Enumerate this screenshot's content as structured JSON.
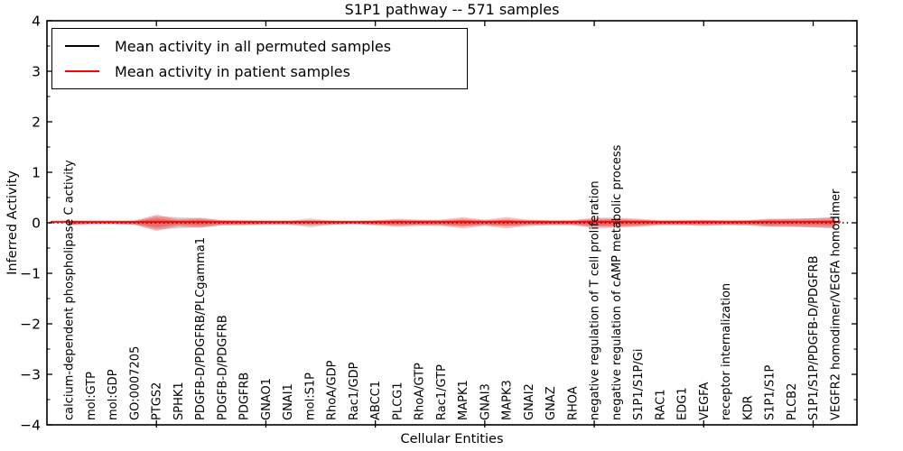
{
  "chart_data": {
    "type": "violin",
    "title": "S1P1 pathway -- 571 samples",
    "xlabel": "Cellular Entities",
    "ylabel": "Inferred Activity",
    "ylim": [
      -4,
      4
    ],
    "yticks": [
      -4,
      -3,
      -2,
      -1,
      0,
      1,
      2,
      3,
      4
    ],
    "grid": false,
    "legend_position": "upper left",
    "legend": [
      {
        "label": "Mean activity in all permuted samples",
        "color": "#000000"
      },
      {
        "label": "Mean activity in patient samples",
        "color": "#ff0000"
      }
    ],
    "categories": [
      "calcium-dependent phospholipase C activity",
      "mol:GTP",
      "mol:GDP",
      "GO:0007205",
      "PTGS2",
      "SPHK1",
      "PDGFB-D/PDGFRB/PLCgamma1",
      "PDGFB-D/PDGFRB",
      "PDGFRB",
      "GNAO1",
      "GNAI1",
      "mol:S1P",
      "RhoA/GDP",
      "Rac1/GDP",
      "ABCC1",
      "PLCG1",
      "RhoA/GTP",
      "Rac1/GTP",
      "MAPK1",
      "GNAI3",
      "MAPK3",
      "GNAI2",
      "GNAZ",
      "RHOA",
      "negative regulation of T cell proliferation",
      "negative regulation of cAMP metabolic process",
      "S1P1/S1P/Gi",
      "RAC1",
      "EDG1",
      "VEGFA",
      "receptor internalization",
      "KDR",
      "S1P1/S1P",
      "PLCB2",
      "S1P1/S1P/PDGFB-D/PDGFRB",
      "VEGFR2 homodimer/VEGFA homodimer"
    ],
    "series": [
      {
        "name": "Mean activity in all permuted samples",
        "color": "#000000",
        "style": "dotted",
        "values": [
          0,
          0,
          0,
          0,
          0,
          0,
          0,
          0,
          0,
          0,
          0,
          0,
          0,
          0,
          0,
          0,
          0,
          0,
          0,
          0,
          0,
          0,
          0,
          0,
          0,
          0,
          0,
          0,
          0,
          0,
          0,
          0,
          0,
          0,
          0,
          0
        ]
      },
      {
        "name": "Mean activity in patient samples",
        "color": "#ff0000",
        "style": "solid",
        "values": [
          0,
          0,
          0,
          0,
          0,
          0,
          0,
          0,
          0,
          0,
          0,
          0,
          0,
          0,
          0,
          0,
          0,
          0,
          0,
          0,
          0,
          0,
          0,
          0,
          0,
          0,
          0,
          0,
          0,
          0,
          0,
          0,
          0,
          0,
          0,
          0
        ]
      }
    ],
    "permuted_spread_halfwidth": [
      0.04,
      0.02,
      0.02,
      0.04,
      0.13,
      0.11,
      0.09,
      0.05,
      0.04,
      0.03,
      0.03,
      0.09,
      0.04,
      0.02,
      0.04,
      0.05,
      0.05,
      0.05,
      0.07,
      0.05,
      0.06,
      0.05,
      0.04,
      0.04,
      0.08,
      0.08,
      0.06,
      0.04,
      0.04,
      0.05,
      0.04,
      0.05,
      0.07,
      0.08,
      0.09,
      0.11
    ],
    "patient_spread_outer_halfwidth": [
      0.05,
      0.03,
      0.03,
      0.04,
      0.16,
      0.07,
      0.1,
      0.05,
      0.05,
      0.04,
      0.04,
      0.05,
      0.04,
      0.03,
      0.05,
      0.08,
      0.06,
      0.06,
      0.11,
      0.06,
      0.11,
      0.06,
      0.05,
      0.05,
      0.1,
      0.1,
      0.08,
      0.05,
      0.05,
      0.06,
      0.05,
      0.05,
      0.08,
      0.08,
      0.09,
      0.1
    ],
    "patient_spread_inner_halfwidth": [
      0.028,
      0.016,
      0.016,
      0.022,
      0.09,
      0.04,
      0.055,
      0.028,
      0.028,
      0.022,
      0.022,
      0.028,
      0.022,
      0.016,
      0.028,
      0.044,
      0.033,
      0.033,
      0.06,
      0.033,
      0.06,
      0.033,
      0.028,
      0.028,
      0.055,
      0.055,
      0.044,
      0.028,
      0.028,
      0.033,
      0.028,
      0.028,
      0.044,
      0.044,
      0.05,
      0.055
    ],
    "x_major_tick_indices": [
      4,
      9,
      14,
      19,
      24,
      29,
      34
    ],
    "colors": {
      "permuted_fill": "#888888",
      "patient_fill": "#ff0000",
      "axis": "#000000",
      "background": "#ffffff"
    }
  }
}
